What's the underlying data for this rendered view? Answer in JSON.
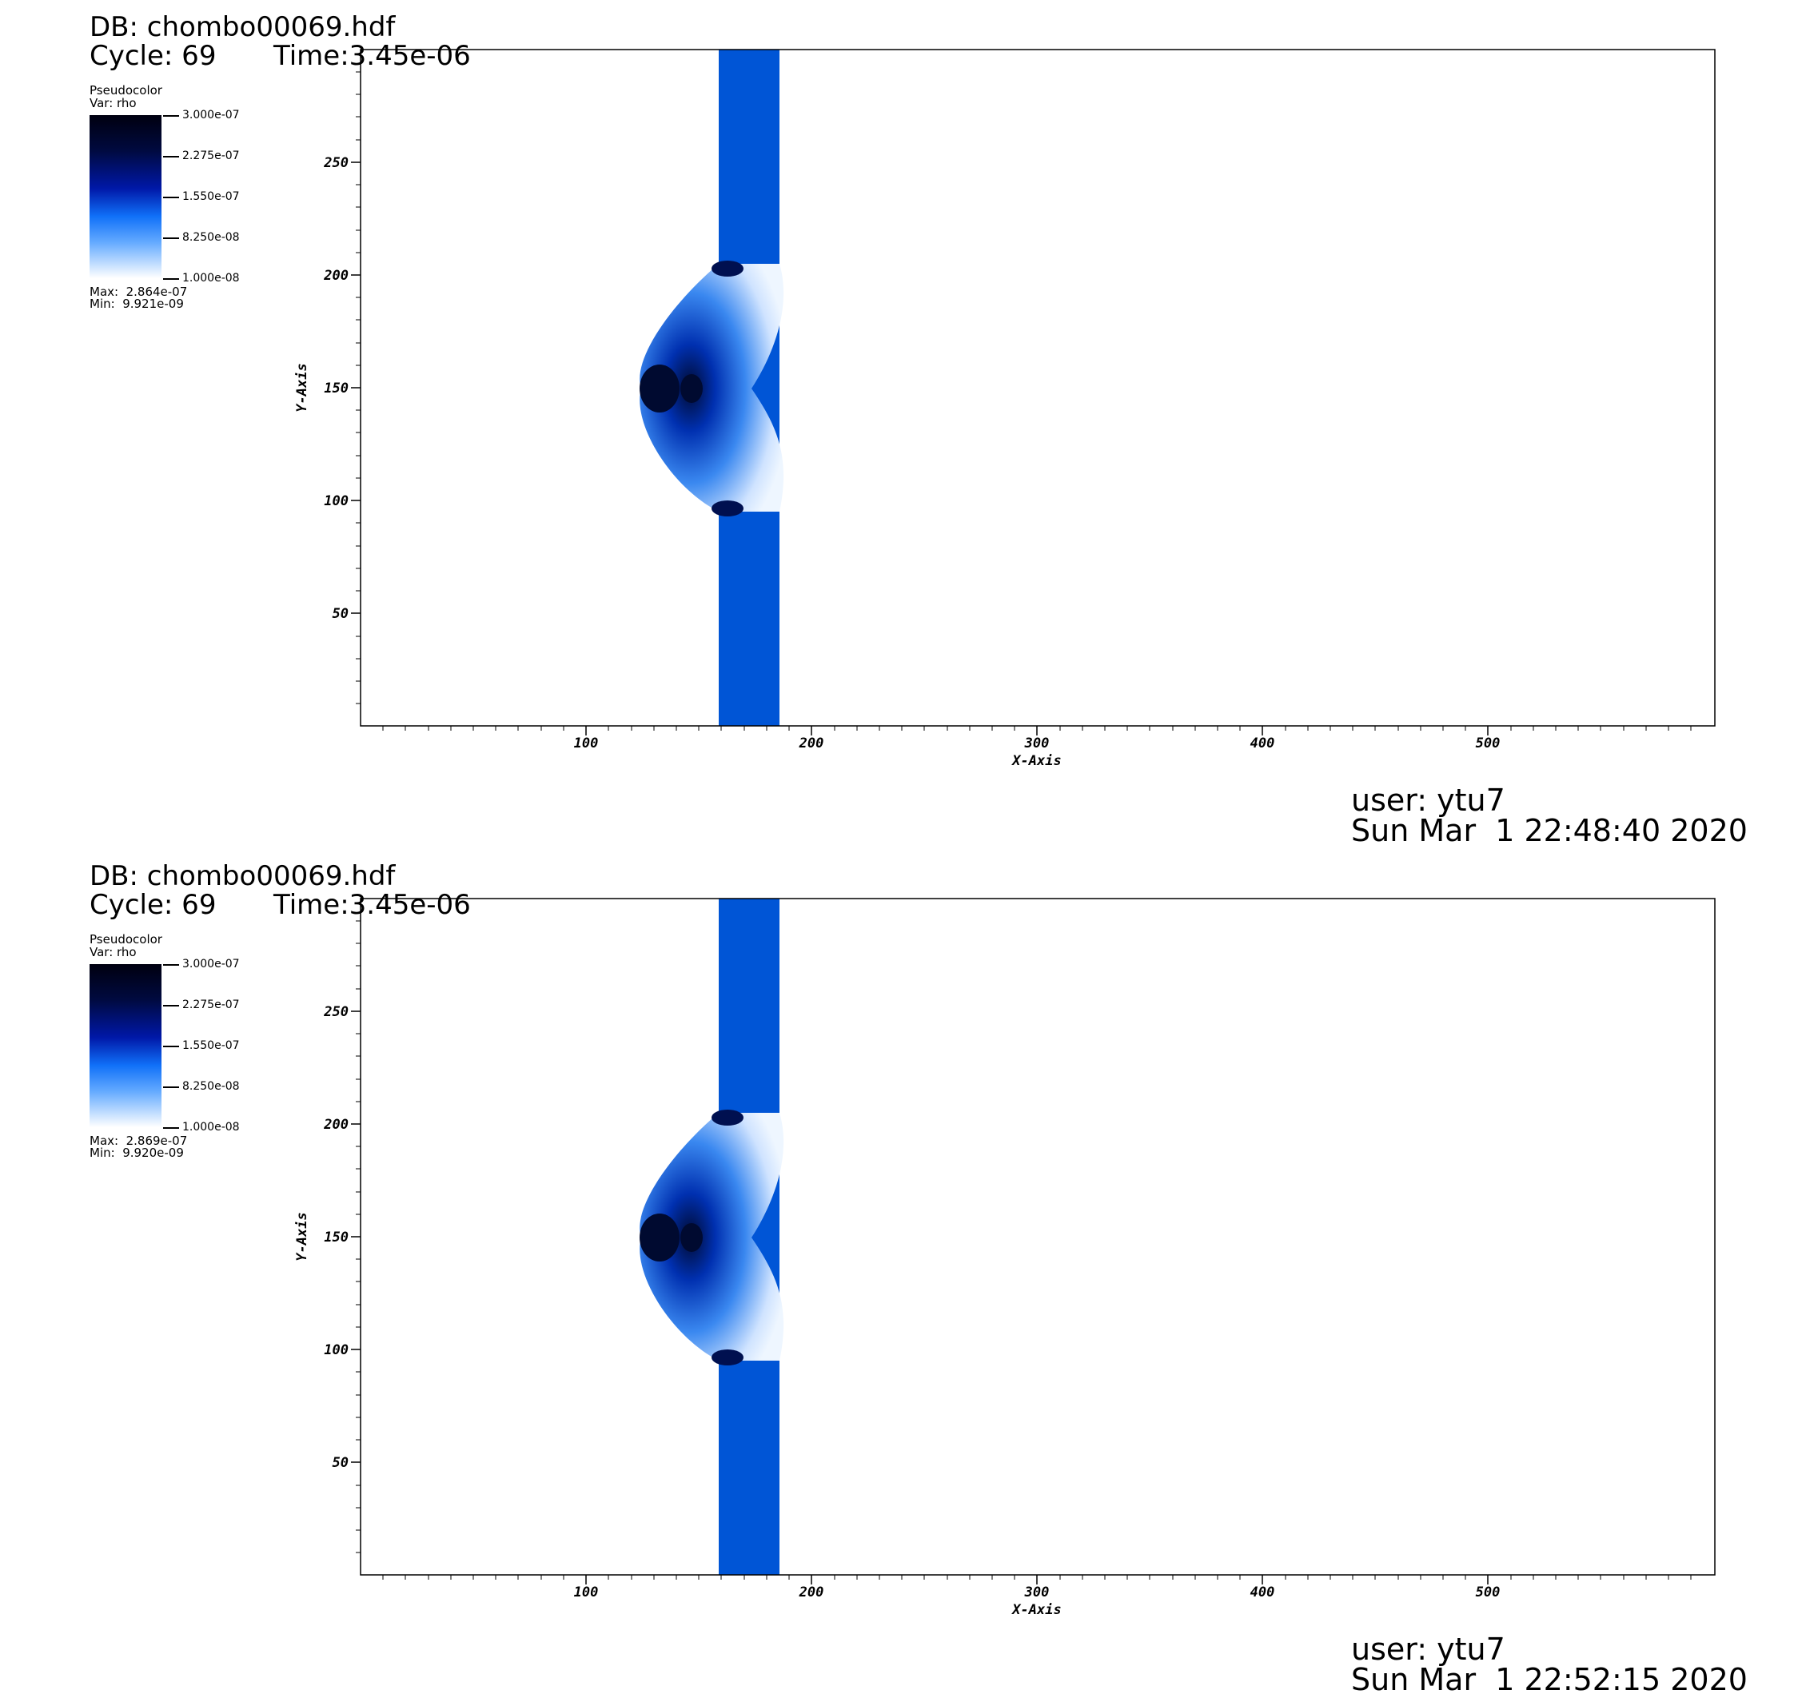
{
  "panels": [
    {
      "db": "DB: chombo00069.hdf",
      "cycle": "Cycle: 69",
      "time": "Time:3.45e-06",
      "legend": {
        "title": "Pseudocolor",
        "var": "Var: rho",
        "ticks": [
          "3.000e-07",
          "2.275e-07",
          "1.550e-07",
          "8.250e-08",
          "1.000e-08"
        ],
        "max": "Max:  2.864e-07",
        "min": "Min:  9.921e-09"
      },
      "user": "user: ytu7",
      "date": "Sun Mar  1 22:48:40 2020"
    },
    {
      "db": "DB: chombo00069.hdf",
      "cycle": "Cycle: 69",
      "time": "Time:3.45e-06",
      "legend": {
        "title": "Pseudocolor",
        "var": "Var: rho",
        "ticks": [
          "3.000e-07",
          "2.275e-07",
          "1.550e-07",
          "8.250e-08",
          "1.000e-08"
        ],
        "max": "Max:  2.869e-07",
        "min": "Min:  9.920e-09"
      },
      "user": "user: ytu7",
      "date": "Sun Mar  1 22:52:15 2020"
    }
  ],
  "axes": {
    "xlabel": "X-Axis",
    "ylabel": "Y-Axis",
    "xlim": [
      0,
      600
    ],
    "ylim": [
      0,
      300
    ],
    "xticks": [
      "100",
      "200",
      "300",
      "400",
      "500"
    ],
    "yticks": [
      "50",
      "100",
      "150",
      "200",
      "250"
    ]
  },
  "colors": {
    "band": "#0055d6",
    "dark": "#000a40",
    "light": "#e0eeff"
  }
}
